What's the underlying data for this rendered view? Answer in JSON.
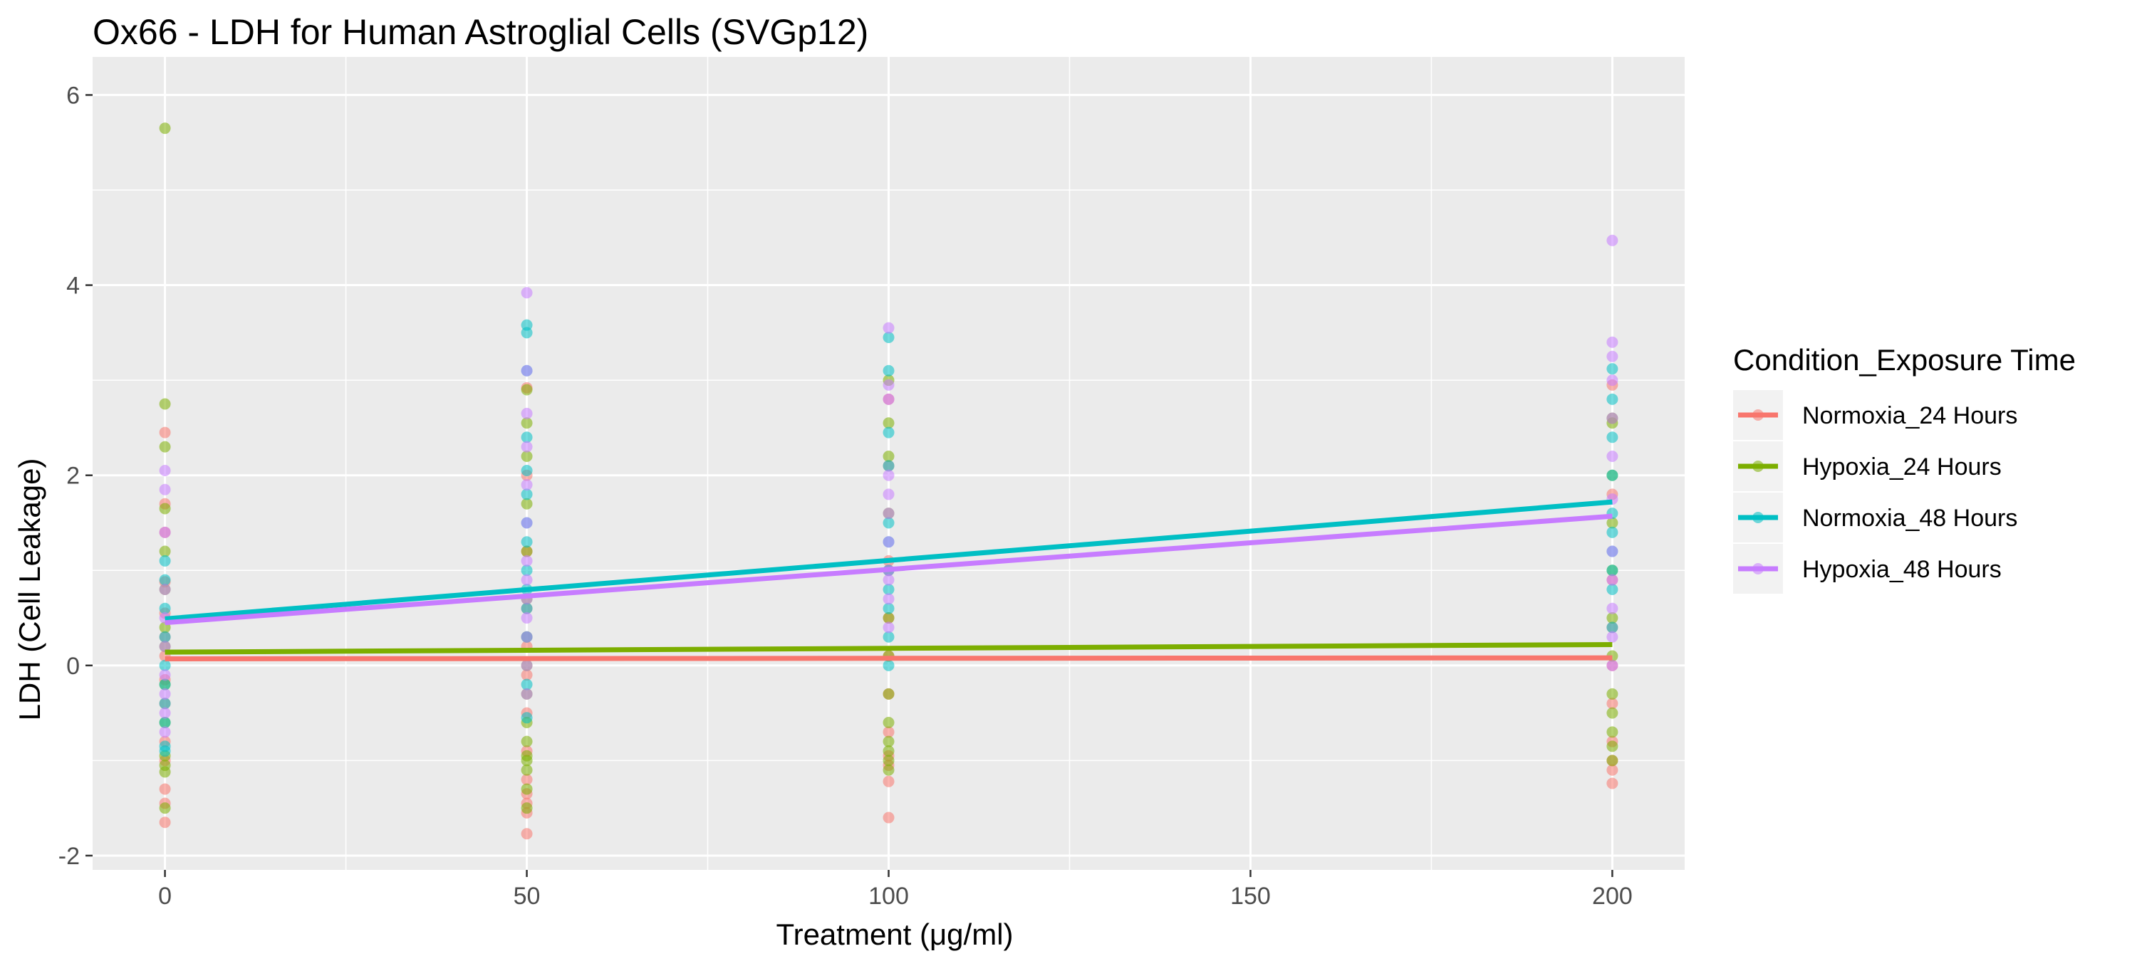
{
  "chart_data": {
    "type": "scatter",
    "title": "Ox66 - LDH for Human Astroglial Cells (SVGp12)",
    "xlabel": "Treatment (μg/ml)",
    "ylabel": "LDH (Cell Leakage)",
    "xlim": [
      -10,
      210
    ],
    "ylim": [
      -2.15,
      6.4
    ],
    "x_ticks": [
      0,
      50,
      100,
      150,
      200
    ],
    "x_tick_labels": [
      "0",
      "50",
      "100",
      "150",
      "200"
    ],
    "y_ticks": [
      -2,
      0,
      2,
      4,
      6
    ],
    "y_tick_labels": [
      "-2",
      "0",
      "2",
      "4",
      "6"
    ],
    "grid": true,
    "legend": {
      "title": "Condition_Exposure Time",
      "position": "right"
    },
    "series": [
      {
        "name": "Normoxia_24 Hours",
        "color": "#F8766D",
        "fit_line": {
          "x": [
            0,
            200
          ],
          "y": [
            0.07,
            0.08
          ]
        },
        "points": [
          [
            0,
            2.45
          ],
          [
            0,
            1.7
          ],
          [
            0,
            1.4
          ],
          [
            0,
            0.88
          ],
          [
            0,
            0.55
          ],
          [
            0,
            0.3
          ],
          [
            0,
            0.1
          ],
          [
            0,
            -0.15
          ],
          [
            0,
            -0.4
          ],
          [
            0,
            -0.8
          ],
          [
            0,
            -1.0
          ],
          [
            0,
            -1.3
          ],
          [
            0,
            -1.45
          ],
          [
            0,
            -1.65
          ],
          [
            50,
            2.92
          ],
          [
            50,
            2.0
          ],
          [
            50,
            1.2
          ],
          [
            50,
            0.6
          ],
          [
            50,
            0.2
          ],
          [
            50,
            -0.1
          ],
          [
            50,
            -0.5
          ],
          [
            50,
            -0.9
          ],
          [
            50,
            -1.2
          ],
          [
            50,
            -1.35
          ],
          [
            50,
            -1.45
          ],
          [
            50,
            -1.55
          ],
          [
            50,
            -1.77
          ],
          [
            100,
            2.8
          ],
          [
            100,
            2.1
          ],
          [
            100,
            1.1
          ],
          [
            100,
            0.5
          ],
          [
            100,
            0.1
          ],
          [
            100,
            -0.3
          ],
          [
            100,
            -0.7
          ],
          [
            100,
            -0.95
          ],
          [
            100,
            -1.05
          ],
          [
            100,
            -1.22
          ],
          [
            100,
            -1.6
          ],
          [
            200,
            2.95
          ],
          [
            200,
            1.8
          ],
          [
            200,
            0.9
          ],
          [
            200,
            0.4
          ],
          [
            200,
            0.0
          ],
          [
            200,
            -0.4
          ],
          [
            200,
            -0.8
          ],
          [
            200,
            -1.0
          ],
          [
            200,
            -1.1
          ],
          [
            200,
            -1.24
          ]
        ]
      },
      {
        "name": "Hypoxia_24 Hours",
        "color": "#7CAE00",
        "fit_line": {
          "x": [
            0,
            200
          ],
          "y": [
            0.14,
            0.22
          ]
        },
        "points": [
          [
            0,
            5.65
          ],
          [
            0,
            2.75
          ],
          [
            0,
            2.3
          ],
          [
            0,
            1.65
          ],
          [
            0,
            1.2
          ],
          [
            0,
            0.8
          ],
          [
            0,
            0.4
          ],
          [
            0,
            0.2
          ],
          [
            0,
            -0.2
          ],
          [
            0,
            -0.6
          ],
          [
            0,
            -0.95
          ],
          [
            0,
            -1.05
          ],
          [
            0,
            -1.12
          ],
          [
            0,
            -1.5
          ],
          [
            50,
            2.9
          ],
          [
            50,
            2.55
          ],
          [
            50,
            2.2
          ],
          [
            50,
            1.7
          ],
          [
            50,
            1.2
          ],
          [
            50,
            0.7
          ],
          [
            50,
            0.3
          ],
          [
            50,
            0.0
          ],
          [
            50,
            -0.3
          ],
          [
            50,
            -0.6
          ],
          [
            50,
            -0.8
          ],
          [
            50,
            -0.95
          ],
          [
            50,
            -1.0
          ],
          [
            50,
            -1.1
          ],
          [
            50,
            -1.3
          ],
          [
            50,
            -1.5
          ],
          [
            100,
            3.0
          ],
          [
            100,
            2.55
          ],
          [
            100,
            2.2
          ],
          [
            100,
            1.6
          ],
          [
            100,
            1.0
          ],
          [
            100,
            0.5
          ],
          [
            100,
            0.1
          ],
          [
            100,
            -0.3
          ],
          [
            100,
            -0.6
          ],
          [
            100,
            -0.8
          ],
          [
            100,
            -0.9
          ],
          [
            100,
            -1.0
          ],
          [
            100,
            -1.1
          ],
          [
            200,
            2.6
          ],
          [
            200,
            2.55
          ],
          [
            200,
            2.0
          ],
          [
            200,
            1.5
          ],
          [
            200,
            1.0
          ],
          [
            200,
            0.5
          ],
          [
            200,
            0.1
          ],
          [
            200,
            -0.3
          ],
          [
            200,
            -0.5
          ],
          [
            200,
            -0.7
          ],
          [
            200,
            -0.85
          ],
          [
            200,
            -1.0
          ]
        ]
      },
      {
        "name": "Normoxia_48 Hours",
        "color": "#00BFC4",
        "fit_line": {
          "x": [
            0,
            200
          ],
          "y": [
            0.49,
            1.72
          ]
        },
        "points": [
          [
            0,
            1.1
          ],
          [
            0,
            0.9
          ],
          [
            0,
            0.6
          ],
          [
            0,
            0.3
          ],
          [
            0,
            0.0
          ],
          [
            0,
            -0.2
          ],
          [
            0,
            -0.4
          ],
          [
            0,
            -0.6
          ],
          [
            0,
            -0.85
          ],
          [
            0,
            -0.9
          ],
          [
            50,
            3.58
          ],
          [
            50,
            3.5
          ],
          [
            50,
            3.1
          ],
          [
            50,
            2.4
          ],
          [
            50,
            2.05
          ],
          [
            50,
            1.8
          ],
          [
            50,
            1.5
          ],
          [
            50,
            1.3
          ],
          [
            50,
            1.0
          ],
          [
            50,
            0.8
          ],
          [
            50,
            0.6
          ],
          [
            50,
            0.3
          ],
          [
            50,
            -0.2
          ],
          [
            50,
            -0.55
          ],
          [
            100,
            3.45
          ],
          [
            100,
            3.1
          ],
          [
            100,
            2.45
          ],
          [
            100,
            2.1
          ],
          [
            100,
            1.5
          ],
          [
            100,
            1.3
          ],
          [
            100,
            1.0
          ],
          [
            100,
            0.8
          ],
          [
            100,
            0.6
          ],
          [
            100,
            0.3
          ],
          [
            100,
            0.0
          ],
          [
            200,
            3.12
          ],
          [
            200,
            2.8
          ],
          [
            200,
            2.4
          ],
          [
            200,
            2.0
          ],
          [
            200,
            1.6
          ],
          [
            200,
            1.4
          ],
          [
            200,
            1.2
          ],
          [
            200,
            1.0
          ],
          [
            200,
            0.8
          ],
          [
            200,
            0.4
          ]
        ]
      },
      {
        "name": "Hypoxia_48 Hours",
        "color": "#C77CFF",
        "fit_line": {
          "x": [
            0,
            200
          ],
          "y": [
            0.45,
            1.57
          ]
        },
        "points": [
          [
            0,
            2.05
          ],
          [
            0,
            1.85
          ],
          [
            0,
            1.4
          ],
          [
            0,
            0.8
          ],
          [
            0,
            0.5
          ],
          [
            0,
            0.2
          ],
          [
            0,
            -0.1
          ],
          [
            0,
            -0.3
          ],
          [
            0,
            -0.5
          ],
          [
            0,
            -0.7
          ],
          [
            50,
            3.92
          ],
          [
            50,
            3.1
          ],
          [
            50,
            2.65
          ],
          [
            50,
            2.3
          ],
          [
            50,
            1.9
          ],
          [
            50,
            1.5
          ],
          [
            50,
            1.1
          ],
          [
            50,
            0.9
          ],
          [
            50,
            0.7
          ],
          [
            50,
            0.5
          ],
          [
            50,
            0.3
          ],
          [
            50,
            0.0
          ],
          [
            50,
            -0.3
          ],
          [
            100,
            3.55
          ],
          [
            100,
            2.95
          ],
          [
            100,
            2.8
          ],
          [
            100,
            2.0
          ],
          [
            100,
            1.8
          ],
          [
            100,
            1.6
          ],
          [
            100,
            1.3
          ],
          [
            100,
            1.0
          ],
          [
            100,
            0.9
          ],
          [
            100,
            0.7
          ],
          [
            100,
            0.4
          ],
          [
            200,
            4.47
          ],
          [
            200,
            3.4
          ],
          [
            200,
            3.25
          ],
          [
            200,
            3.0
          ],
          [
            200,
            2.6
          ],
          [
            200,
            2.2
          ],
          [
            200,
            1.75
          ],
          [
            200,
            1.2
          ],
          [
            200,
            0.9
          ],
          [
            200,
            0.6
          ],
          [
            200,
            0.3
          ],
          [
            200,
            0.0
          ]
        ]
      }
    ]
  }
}
